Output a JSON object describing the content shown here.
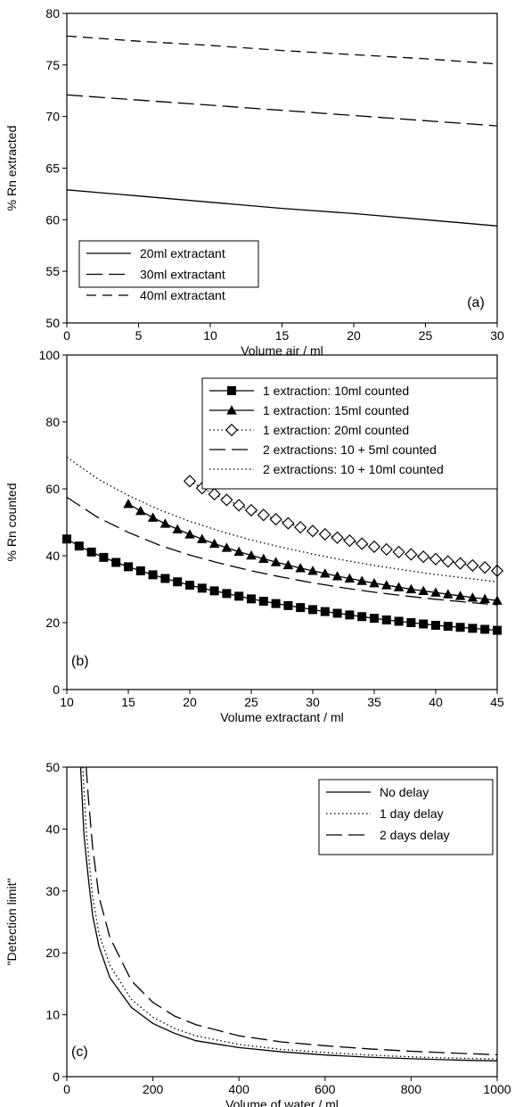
{
  "chart_data": [
    {
      "type": "line",
      "panel_label": "(a)",
      "xlabel": "Volume air / ml",
      "ylabel": "% Rn extracted",
      "xlim": [
        0,
        30
      ],
      "ylim": [
        50,
        80
      ],
      "xticks": [
        0,
        5,
        10,
        15,
        20,
        25,
        30
      ],
      "yticks": [
        50,
        55,
        60,
        65,
        70,
        75,
        80
      ],
      "legend_position": "bottom-left",
      "series": [
        {
          "name": "20ml extractant",
          "style": "solid",
          "x": [
            0,
            5,
            10,
            15,
            20,
            25,
            30
          ],
          "y": [
            62.9,
            62.3,
            61.7,
            61.1,
            60.6,
            60.0,
            59.4
          ]
        },
        {
          "name": "30ml extractant",
          "style": "longdash",
          "x": [
            0,
            5,
            10,
            15,
            20,
            25,
            30
          ],
          "y": [
            72.1,
            71.6,
            71.1,
            70.6,
            70.1,
            69.6,
            69.1
          ]
        },
        {
          "name": "40ml extractant",
          "style": "dash",
          "x": [
            0,
            5,
            10,
            15,
            20,
            25,
            30
          ],
          "y": [
            77.8,
            77.3,
            76.9,
            76.4,
            76.0,
            75.6,
            75.1
          ]
        }
      ]
    },
    {
      "type": "line",
      "panel_label": "(b)",
      "xlabel": "Volume extractant / ml",
      "ylabel": "% Rn counted",
      "xlim": [
        10,
        45
      ],
      "ylim": [
        0,
        100
      ],
      "xticks": [
        10,
        15,
        20,
        25,
        30,
        35,
        40,
        45
      ],
      "yticks": [
        0,
        20,
        40,
        60,
        80,
        100
      ],
      "legend_position": "top-right",
      "series": [
        {
          "name": "1 extraction: 10ml counted",
          "style": "solid",
          "marker": "square",
          "x": [
            10,
            11,
            12,
            13,
            14,
            15,
            16,
            17,
            18,
            19,
            20,
            21,
            22,
            23,
            24,
            25,
            26,
            27,
            28,
            29,
            30,
            31,
            32,
            33,
            34,
            35,
            36,
            37,
            38,
            39,
            40,
            41,
            42,
            43,
            44,
            45
          ],
          "y": [
            45.0,
            42.9,
            41.1,
            39.5,
            38.0,
            36.7,
            35.5,
            34.3,
            33.2,
            32.2,
            31.2,
            30.3,
            29.5,
            28.7,
            27.9,
            27.1,
            26.4,
            25.7,
            25.1,
            24.5,
            23.9,
            23.3,
            22.8,
            22.3,
            21.8,
            21.3,
            20.8,
            20.4,
            20.0,
            19.6,
            19.2,
            18.9,
            18.6,
            18.3,
            18.0,
            17.7
          ]
        },
        {
          "name": "1 extraction: 15ml counted",
          "style": "solid",
          "marker": "triangle",
          "x": [
            15,
            16,
            17,
            18,
            19,
            20,
            21,
            22,
            23,
            24,
            25,
            26,
            27,
            28,
            29,
            30,
            31,
            32,
            33,
            34,
            35,
            36,
            37,
            38,
            39,
            40,
            41,
            42,
            43,
            44,
            45
          ],
          "y": [
            55.5,
            53.4,
            51.4,
            49.6,
            47.9,
            46.4,
            45.0,
            43.6,
            42.4,
            41.2,
            40.1,
            39.1,
            38.1,
            37.2,
            36.3,
            35.5,
            34.7,
            33.9,
            33.2,
            32.5,
            31.8,
            31.2,
            30.6,
            30.0,
            29.5,
            29.0,
            28.5,
            28.0,
            27.5,
            27.1,
            26.6
          ]
        },
        {
          "name": "1 extraction: 20ml counted",
          "style": "dotted",
          "marker": "diamond",
          "x": [
            20,
            21,
            22,
            23,
            24,
            25,
            26,
            27,
            28,
            29,
            30,
            31,
            32,
            33,
            34,
            35,
            36,
            37,
            38,
            39,
            40,
            41,
            42,
            43,
            44,
            45
          ],
          "y": [
            62.3,
            60.2,
            58.4,
            56.7,
            55.1,
            53.6,
            52.2,
            50.9,
            49.7,
            48.5,
            47.4,
            46.4,
            45.4,
            44.5,
            43.6,
            42.7,
            41.9,
            41.1,
            40.4,
            39.7,
            39.0,
            38.3,
            37.7,
            37.1,
            36.5,
            35.5
          ]
        },
        {
          "name": "2 extractions: 10 + 5ml counted",
          "style": "longdash",
          "x": [
            10,
            12.5,
            15,
            17.5,
            20,
            22.5,
            25,
            27.5,
            30,
            32.5,
            35,
            37.5,
            40,
            42.5,
            45
          ],
          "y": [
            57.5,
            51.5,
            47.0,
            43.2,
            40.2,
            37.7,
            35.5,
            33.6,
            31.9,
            30.4,
            29.1,
            28.0,
            27.0,
            26.1,
            25.3
          ]
        },
        {
          "name": "2 extractions: 10 + 10ml counted",
          "style": "dotted",
          "x": [
            10,
            12.5,
            15,
            17.5,
            20,
            22.5,
            25,
            27.5,
            30,
            32.5,
            35,
            37.5,
            40,
            42.5,
            45
          ],
          "y": [
            69.5,
            63.0,
            58.0,
            53.8,
            50.3,
            47.3,
            44.7,
            42.5,
            40.5,
            38.7,
            37.1,
            35.7,
            34.4,
            33.3,
            32.2
          ]
        }
      ]
    },
    {
      "type": "line",
      "panel_label": "(c)",
      "xlabel": "Volume of water / ml",
      "ylabel": "\"Detection limit\"",
      "xlim": [
        0,
        1000
      ],
      "ylim": [
        0,
        50
      ],
      "xticks": [
        0,
        200,
        400,
        600,
        800,
        1000
      ],
      "yticks": [
        0,
        10,
        20,
        30,
        40,
        50
      ],
      "legend_position": "top-right",
      "series": [
        {
          "name": "No delay",
          "style": "solid",
          "x": [
            32,
            40,
            50,
            60,
            75,
            100,
            150,
            200,
            250,
            300,
            400,
            500,
            600,
            700,
            800,
            900,
            1000
          ],
          "y": [
            50,
            39,
            32,
            26,
            21,
            16,
            11.2,
            8.6,
            7.0,
            5.8,
            4.7,
            4.0,
            3.5,
            3.15,
            2.9,
            2.7,
            2.55
          ]
        },
        {
          "name": "1 day delay",
          "style": "dotted",
          "x": [
            37,
            45,
            50,
            60,
            75,
            100,
            150,
            200,
            250,
            300,
            400,
            500,
            600,
            700,
            800,
            900,
            1000
          ],
          "y": [
            50,
            40,
            36,
            29,
            23,
            18,
            12.5,
            9.6,
            7.8,
            6.6,
            5.2,
            4.4,
            3.9,
            3.5,
            3.2,
            3.0,
            2.85
          ]
        },
        {
          "name": "2 days delay",
          "style": "longdash",
          "x": [
            45,
            50,
            60,
            75,
            100,
            150,
            200,
            250,
            300,
            400,
            500,
            600,
            700,
            800,
            900,
            1000
          ],
          "y": [
            50,
            45,
            37,
            29,
            22.5,
            15.5,
            12.0,
            9.8,
            8.4,
            6.6,
            5.6,
            5.0,
            4.5,
            4.1,
            3.8,
            3.55
          ]
        }
      ]
    }
  ]
}
